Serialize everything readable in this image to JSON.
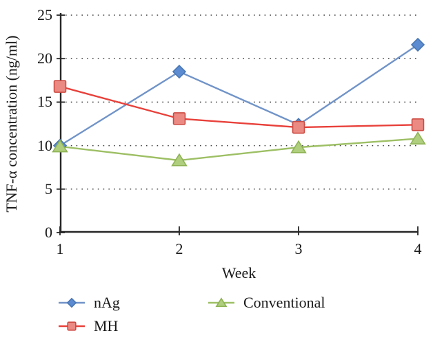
{
  "chart_data": {
    "type": "line",
    "title": "",
    "xlabel": "Week",
    "ylabel": "TNF-α concentration (ng/ml)",
    "x": [
      1,
      2,
      3,
      4
    ],
    "xticks": [
      "1",
      "2",
      "3",
      "4"
    ],
    "yticks": [
      0,
      5,
      10,
      15,
      20,
      25
    ],
    "ylim": [
      0,
      25
    ],
    "gridlines": [
      5,
      10,
      15,
      20,
      25
    ],
    "grid_style": "dotted",
    "grid_color": "#3f3f3f",
    "axis_color": "#262626",
    "text_color": "#1a1a1a",
    "legend_position": "bottom",
    "series": [
      {
        "name": "nAg",
        "marker": "diamond",
        "marker_z": 1,
        "line_color": "#7093C8",
        "fill_color": "#5D8BD1",
        "edge_color": "#4877B4",
        "values": [
          10.0,
          18.5,
          12.4,
          21.6
        ]
      },
      {
        "name": "MH",
        "marker": "square",
        "marker_z": 3,
        "line_color": "#E8403A",
        "fill_color": "#EA8A83",
        "edge_color": "#CD4B43",
        "values": [
          16.8,
          13.1,
          12.1,
          12.4
        ]
      },
      {
        "name": "Conventional",
        "marker": "triangle",
        "marker_z": 2,
        "line_color": "#9DBF64",
        "fill_color": "#AFCE7E",
        "edge_color": "#8FB354",
        "values": [
          9.9,
          8.3,
          9.8,
          10.8
        ]
      }
    ]
  }
}
